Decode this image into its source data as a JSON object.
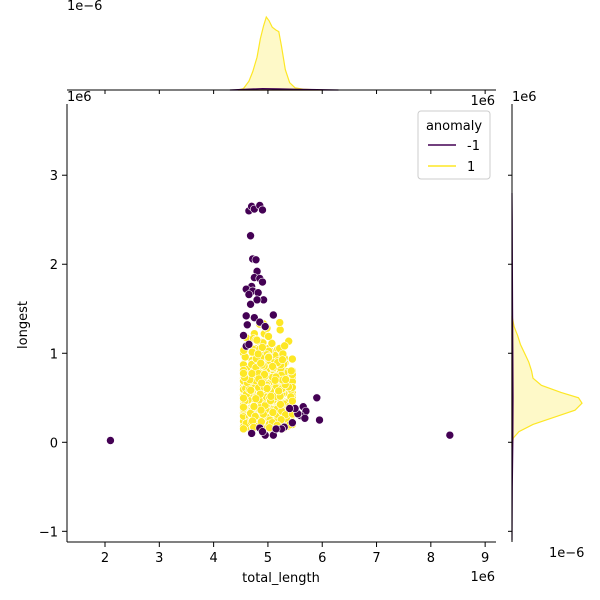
{
  "chart_data": [
    {
      "type": "scatter",
      "xlabel": "total_length",
      "ylabel": "longest",
      "x_offset_label": "1e6",
      "y_offset_label": "1e6",
      "xlim": [
        1.3,
        9.2
      ],
      "ylim": [
        -1.12,
        3.8
      ],
      "x_ticks": [
        "2",
        "3",
        "4",
        "5",
        "6",
        "7",
        "8",
        "9"
      ],
      "y_ticks": [
        "−1",
        "0",
        "1",
        "2",
        "3"
      ],
      "legend": {
        "title": "anomaly",
        "position": "upper right",
        "entries": [
          "-1",
          "1"
        ]
      },
      "series": [
        {
          "name": "-1",
          "color": "#440154",
          "points": [
            [
              2.1,
              0.02
            ],
            [
              8.35,
              0.08
            ],
            [
              4.65,
              2.6
            ],
            [
              4.7,
              2.65
            ],
            [
              4.75,
              2.62
            ],
            [
              4.85,
              2.66
            ],
            [
              4.9,
              2.61
            ],
            [
              4.68,
              2.32
            ],
            [
              4.72,
              2.06
            ],
            [
              4.78,
              2.05
            ],
            [
              4.8,
              1.92
            ],
            [
              4.75,
              1.85
            ],
            [
              4.85,
              1.84
            ],
            [
              4.9,
              1.8
            ],
            [
              4.7,
              1.75
            ],
            [
              4.6,
              1.72
            ],
            [
              4.72,
              1.7
            ],
            [
              4.82,
              1.68
            ],
            [
              4.65,
              1.66
            ],
            [
              4.92,
              1.6
            ],
            [
              4.8,
              1.6
            ],
            [
              4.68,
              1.55
            ],
            [
              4.6,
              1.42
            ],
            [
              4.75,
              1.4
            ],
            [
              5.1,
              1.43
            ],
            [
              4.62,
              1.32
            ],
            [
              4.85,
              1.35
            ],
            [
              4.95,
              1.3
            ],
            [
              4.55,
              1.2
            ],
            [
              4.6,
              1.08
            ],
            [
              4.65,
              1.1
            ],
            [
              5.9,
              0.5
            ],
            [
              5.65,
              0.4
            ],
            [
              5.7,
              0.35
            ],
            [
              5.6,
              0.3
            ],
            [
              5.55,
              0.32
            ],
            [
              5.5,
              0.38
            ],
            [
              5.95,
              0.25
            ],
            [
              5.68,
              0.27
            ],
            [
              5.4,
              0.38
            ],
            [
              5.45,
              0.22
            ],
            [
              5.3,
              0.17
            ],
            [
              5.25,
              0.15
            ],
            [
              4.7,
              0.1
            ],
            [
              4.85,
              0.16
            ],
            [
              4.95,
              0.08
            ],
            [
              5.1,
              0.08
            ],
            [
              4.9,
              0.12
            ],
            [
              5.15,
              0.15
            ]
          ]
        },
        {
          "name": "1",
          "color": "#fde725",
          "generated_cluster": {
            "count": 700,
            "x_range": [
              4.55,
              5.45
            ],
            "y_range": [
              0.15,
              1.35
            ]
          }
        }
      ]
    },
    {
      "type": "area",
      "role": "marginal-x-density",
      "offset_label": "1e−6",
      "series": [
        {
          "name": "1",
          "color": "#fde725",
          "x": [
            4.45,
            4.55,
            4.65,
            4.72,
            4.8,
            4.86,
            4.92,
            4.97,
            5.02,
            5.08,
            5.15,
            5.2,
            5.25,
            5.32,
            5.4,
            5.5,
            5.65,
            5.8,
            6.0
          ],
          "y": [
            0.0,
            0.02,
            0.12,
            0.25,
            0.45,
            0.7,
            0.88,
            1.0,
            0.95,
            0.86,
            0.82,
            0.8,
            0.6,
            0.28,
            0.1,
            0.03,
            0.01,
            0.005,
            0.0
          ]
        },
        {
          "name": "-1",
          "color": "#440154",
          "x": [
            4.3,
            4.6,
            4.9,
            5.2,
            5.5,
            5.9,
            6.3
          ],
          "y": [
            0.0,
            0.01,
            0.02,
            0.015,
            0.01,
            0.005,
            0.0
          ]
        }
      ]
    },
    {
      "type": "area",
      "role": "marginal-y-density",
      "offset_label": "1e−6",
      "series": [
        {
          "name": "1",
          "color": "#fde725",
          "y": [
            -0.05,
            0.05,
            0.12,
            0.2,
            0.28,
            0.36,
            0.44,
            0.5,
            0.56,
            0.64,
            0.72,
            0.8,
            0.9,
            1.0,
            1.1,
            1.2,
            1.3,
            1.42
          ],
          "x": [
            0.0,
            0.02,
            0.1,
            0.3,
            0.6,
            0.9,
            1.0,
            0.95,
            0.7,
            0.42,
            0.3,
            0.28,
            0.24,
            0.18,
            0.12,
            0.08,
            0.03,
            0.0
          ]
        },
        {
          "name": "-1",
          "color": "#440154",
          "y": [
            -1.1,
            -0.5,
            0.0,
            0.5,
            1.0,
            1.5,
            2.0,
            2.5,
            2.8
          ],
          "x": [
            0.0,
            0.004,
            0.012,
            0.015,
            0.012,
            0.008,
            0.005,
            0.003,
            0.0
          ]
        }
      ]
    }
  ]
}
